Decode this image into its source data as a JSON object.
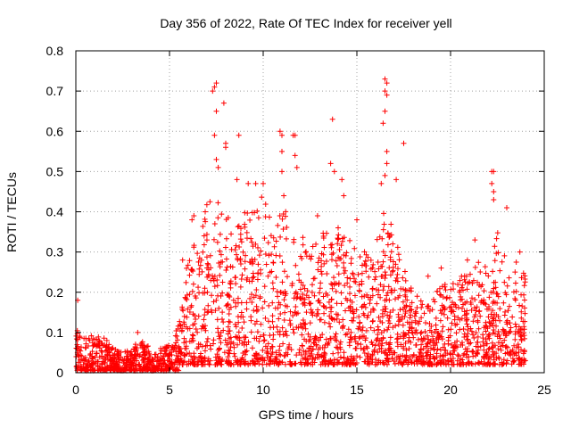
{
  "chart_data": {
    "type": "scatter",
    "title": "Day 356 of 2022, Rate Of TEC Index for receiver yell",
    "xlabel": "GPS time / hours",
    "ylabel": "ROTI / TECUs",
    "xlim": [
      0,
      25
    ],
    "ylim": [
      0,
      0.8
    ],
    "x_ticks": [
      0,
      5,
      10,
      15,
      20,
      25
    ],
    "y_ticks": [
      0,
      0.1,
      0.2,
      0.3,
      0.4,
      0.5,
      0.6,
      0.7,
      0.8
    ],
    "x_tick_labels": [
      "0",
      "5",
      "10",
      "15",
      "20",
      "25"
    ],
    "y_tick_labels": [
      "0",
      "0.1",
      "0.2",
      "0.3",
      "0.4",
      "0.5",
      "0.6",
      "0.7",
      "0.8"
    ],
    "grid": true,
    "marker": "+",
    "marker_color": "#ff0000",
    "envelope": [
      {
        "x": 0.0,
        "y": 0.13
      },
      {
        "x": 0.5,
        "y": 0.09
      },
      {
        "x": 1.0,
        "y": 0.1
      },
      {
        "x": 1.5,
        "y": 0.09
      },
      {
        "x": 2.0,
        "y": 0.06
      },
      {
        "x": 2.5,
        "y": 0.05
      },
      {
        "x": 3.0,
        "y": 0.06
      },
      {
        "x": 3.3,
        "y": 0.09
      },
      {
        "x": 4.0,
        "y": 0.06
      },
      {
        "x": 4.5,
        "y": 0.06
      },
      {
        "x": 5.0,
        "y": 0.07
      },
      {
        "x": 5.5,
        "y": 0.12
      },
      {
        "x": 6.0,
        "y": 0.3
      },
      {
        "x": 6.5,
        "y": 0.33
      },
      {
        "x": 7.0,
        "y": 0.42
      },
      {
        "x": 7.5,
        "y": 0.45
      },
      {
        "x": 8.0,
        "y": 0.4
      },
      {
        "x": 8.5,
        "y": 0.35
      },
      {
        "x": 9.0,
        "y": 0.4
      },
      {
        "x": 9.5,
        "y": 0.4
      },
      {
        "x": 10.0,
        "y": 0.45
      },
      {
        "x": 10.5,
        "y": 0.38
      },
      {
        "x": 11.0,
        "y": 0.42
      },
      {
        "x": 11.5,
        "y": 0.42
      },
      {
        "x": 12.0,
        "y": 0.35
      },
      {
        "x": 12.5,
        "y": 0.3
      },
      {
        "x": 13.0,
        "y": 0.35
      },
      {
        "x": 13.5,
        "y": 0.36
      },
      {
        "x": 14.0,
        "y": 0.35
      },
      {
        "x": 14.5,
        "y": 0.34
      },
      {
        "x": 15.0,
        "y": 0.32
      },
      {
        "x": 15.5,
        "y": 0.3
      },
      {
        "x": 16.0,
        "y": 0.36
      },
      {
        "x": 16.5,
        "y": 0.42
      },
      {
        "x": 17.0,
        "y": 0.35
      },
      {
        "x": 17.5,
        "y": 0.26
      },
      {
        "x": 18.0,
        "y": 0.2
      },
      {
        "x": 18.5,
        "y": 0.18
      },
      {
        "x": 19.0,
        "y": 0.18
      },
      {
        "x": 19.5,
        "y": 0.22
      },
      {
        "x": 20.0,
        "y": 0.22
      },
      {
        "x": 20.5,
        "y": 0.24
      },
      {
        "x": 21.0,
        "y": 0.25
      },
      {
        "x": 21.5,
        "y": 0.28
      },
      {
        "x": 22.0,
        "y": 0.26
      },
      {
        "x": 22.5,
        "y": 0.35
      },
      {
        "x": 23.0,
        "y": 0.28
      },
      {
        "x": 23.5,
        "y": 0.28
      },
      {
        "x": 24.0,
        "y": 0.25
      }
    ],
    "peaks": [
      {
        "x": 0.1,
        "y": 0.18
      },
      {
        "x": 7.3,
        "y": 0.7
      },
      {
        "x": 7.4,
        "y": 0.71
      },
      {
        "x": 7.5,
        "y": 0.72
      },
      {
        "x": 7.5,
        "y": 0.65
      },
      {
        "x": 7.4,
        "y": 0.59
      },
      {
        "x": 7.5,
        "y": 0.53
      },
      {
        "x": 7.6,
        "y": 0.51
      },
      {
        "x": 7.9,
        "y": 0.67
      },
      {
        "x": 8.0,
        "y": 0.57
      },
      {
        "x": 8.0,
        "y": 0.56
      },
      {
        "x": 8.7,
        "y": 0.59
      },
      {
        "x": 8.6,
        "y": 0.48
      },
      {
        "x": 9.2,
        "y": 0.47
      },
      {
        "x": 9.6,
        "y": 0.47
      },
      {
        "x": 10.0,
        "y": 0.47
      },
      {
        "x": 10.9,
        "y": 0.6
      },
      {
        "x": 11.0,
        "y": 0.59
      },
      {
        "x": 11.0,
        "y": 0.55
      },
      {
        "x": 11.0,
        "y": 0.5
      },
      {
        "x": 11.6,
        "y": 0.59
      },
      {
        "x": 11.7,
        "y": 0.59
      },
      {
        "x": 11.7,
        "y": 0.54
      },
      {
        "x": 11.8,
        "y": 0.51
      },
      {
        "x": 11.1,
        "y": 0.44
      },
      {
        "x": 13.7,
        "y": 0.63
      },
      {
        "x": 13.6,
        "y": 0.52
      },
      {
        "x": 13.8,
        "y": 0.5
      },
      {
        "x": 14.2,
        "y": 0.48
      },
      {
        "x": 14.3,
        "y": 0.44
      },
      {
        "x": 16.5,
        "y": 0.73
      },
      {
        "x": 16.6,
        "y": 0.72
      },
      {
        "x": 16.5,
        "y": 0.7
      },
      {
        "x": 16.6,
        "y": 0.69
      },
      {
        "x": 16.5,
        "y": 0.65
      },
      {
        "x": 16.4,
        "y": 0.62
      },
      {
        "x": 16.6,
        "y": 0.55
      },
      {
        "x": 16.6,
        "y": 0.52
      },
      {
        "x": 16.5,
        "y": 0.49
      },
      {
        "x": 16.3,
        "y": 0.47
      },
      {
        "x": 17.1,
        "y": 0.48
      },
      {
        "x": 17.5,
        "y": 0.57
      },
      {
        "x": 22.2,
        "y": 0.5
      },
      {
        "x": 22.3,
        "y": 0.5
      },
      {
        "x": 22.2,
        "y": 0.47
      },
      {
        "x": 22.3,
        "y": 0.45
      },
      {
        "x": 22.3,
        "y": 0.43
      },
      {
        "x": 23.0,
        "y": 0.41
      },
      {
        "x": 12.9,
        "y": 0.39
      },
      {
        "x": 14.0,
        "y": 0.36
      },
      {
        "x": 15.0,
        "y": 0.38
      },
      {
        "x": 6.3,
        "y": 0.39
      },
      {
        "x": 6.2,
        "y": 0.38
      },
      {
        "x": 5.7,
        "y": 0.28
      },
      {
        "x": 19.5,
        "y": 0.26
      },
      {
        "x": 21.3,
        "y": 0.33
      },
      {
        "x": 23.7,
        "y": 0.3
      },
      {
        "x": 18.8,
        "y": 0.24
      },
      {
        "x": 20.9,
        "y": 0.28
      },
      {
        "x": 3.3,
        "y": 0.1
      }
    ]
  }
}
